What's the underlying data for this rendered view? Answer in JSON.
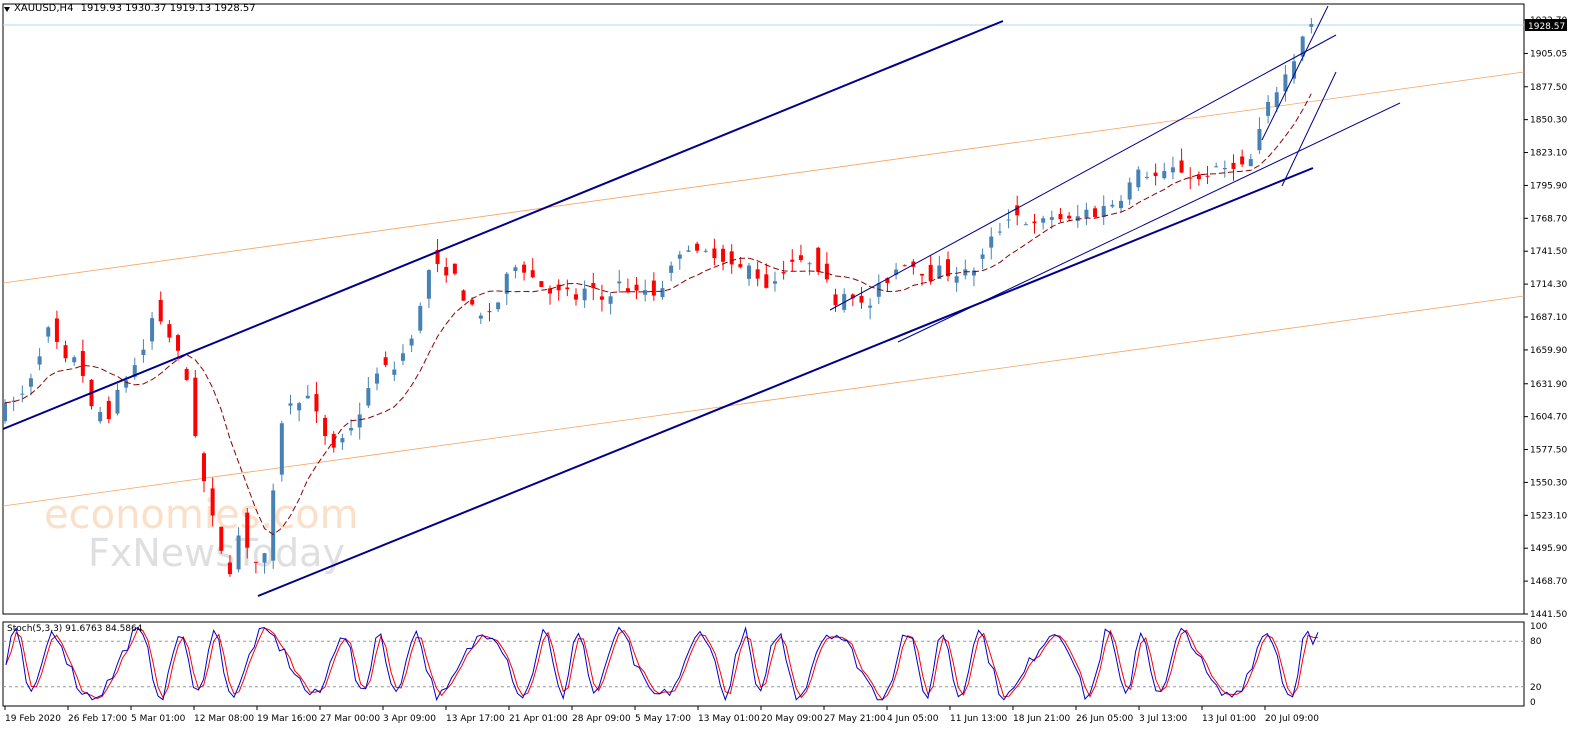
{
  "header": {
    "symbol": "XAUUSD,H4",
    "ohlc": "1919.93 1930.37 1919.13 1928.57"
  },
  "current_price_label": "1928.57",
  "watermark": {
    "line1": "economies.com",
    "line2": "FxNewsToday"
  },
  "colors": {
    "background": "#ffffff",
    "bull_candle": "#4682b4",
    "bear_candle": "#ff0000",
    "channel": "#00008b",
    "fib_line": "#f4a460",
    "moving_average": "#8b0000",
    "price_line": "#b0d8f0",
    "stoch_main": "#0000cd",
    "stoch_signal": "#ff0000",
    "watermark": "#f4a460"
  },
  "chart_data": [
    {
      "type": "candlestick",
      "title": "XAUUSD,H4",
      "ylim": [
        1441.5,
        1932.7
      ],
      "y_ticks": [
        "1932.70",
        "1905.05",
        "1877.50",
        "1850.30",
        "1823.10",
        "1795.90",
        "1768.70",
        "1741.50",
        "1714.30",
        "1687.10",
        "1659.90",
        "1631.90",
        "1604.70",
        "1577.50",
        "1550.30",
        "1523.10",
        "1495.90",
        "1468.70",
        "1441.50"
      ],
      "x_ticks": [
        "19 Feb 2020",
        "26 Feb 17:00",
        "5 Mar 01:00",
        "12 Mar 08:00",
        "19 Mar 16:00",
        "27 Mar 00:00",
        "3 Apr 09:00",
        "13 Apr 17:00",
        "21 Apr 01:00",
        "28 Apr 09:00",
        "5 May 17:00",
        "13 May 01:00",
        "20 May 09:00",
        "27 May 21:00",
        "4 Jun 05:00",
        "11 Jun 13:00",
        "18 Jun 21:00",
        "26 Jun 05:00",
        "3 Jul 13:00",
        "13 Jul 01:00",
        "20 Jul 09:00"
      ],
      "last_price": 1928.57,
      "price_path": [
        [
          0,
          1608
        ],
        [
          3,
          1625
        ],
        [
          5,
          1665
        ],
        [
          6,
          1680
        ],
        [
          7,
          1658
        ],
        [
          8,
          1645
        ],
        [
          9,
          1660
        ],
        [
          10,
          1632
        ],
        [
          11,
          1600
        ],
        [
          12,
          1612
        ],
        [
          13,
          1605
        ],
        [
          14,
          1630
        ],
        [
          15,
          1640
        ],
        [
          16,
          1650
        ],
        [
          17,
          1665
        ],
        [
          18,
          1695
        ],
        [
          19,
          1680
        ],
        [
          20,
          1668
        ],
        [
          21,
          1650
        ],
        [
          22,
          1630
        ],
        [
          23,
          1575
        ],
        [
          24,
          1540
        ],
        [
          25,
          1510
        ],
        [
          26,
          1490
        ],
        [
          27,
          1475
        ],
        [
          28,
          1520
        ],
        [
          29,
          1490
        ],
        [
          30,
          1482
        ],
        [
          31,
          1490
        ],
        [
          32,
          1560
        ],
        [
          33,
          1620
        ],
        [
          34,
          1610
        ],
        [
          35,
          1625
        ],
        [
          36,
          1618
        ],
        [
          37,
          1600
        ],
        [
          38,
          1585
        ],
        [
          39,
          1578
        ],
        [
          40,
          1590
        ],
        [
          41,
          1600
        ],
        [
          42,
          1612
        ],
        [
          43,
          1630
        ],
        [
          44,
          1650
        ],
        [
          45,
          1640
        ],
        [
          46,
          1650
        ],
        [
          47,
          1660
        ],
        [
          48,
          1680
        ],
        [
          49,
          1700
        ],
        [
          50,
          1738
        ],
        [
          51,
          1722
        ],
        [
          52,
          1728
        ],
        [
          53,
          1715
        ],
        [
          54,
          1700
        ],
        [
          55,
          1690
        ],
        [
          56,
          1685
        ],
        [
          57,
          1695
        ],
        [
          58,
          1702
        ],
        [
          59,
          1725
        ],
        [
          60,
          1735
        ],
        [
          61,
          1725
        ],
        [
          62,
          1718
        ],
        [
          63,
          1712
        ],
        [
          64,
          1710
        ],
        [
          65,
          1705
        ],
        [
          66,
          1708
        ],
        [
          67,
          1700
        ],
        [
          68,
          1712
        ],
        [
          69,
          1705
        ],
        [
          70,
          1700
        ],
        [
          71,
          1712
        ],
        [
          72,
          1715
        ],
        [
          73,
          1708
        ],
        [
          74,
          1705
        ],
        [
          75,
          1712
        ],
        [
          76,
          1705
        ],
        [
          77,
          1718
        ],
        [
          78,
          1730
        ],
        [
          79,
          1748
        ],
        [
          80,
          1745
        ],
        [
          81,
          1735
        ],
        [
          82,
          1742
        ],
        [
          83,
          1740
        ],
        [
          84,
          1735
        ],
        [
          85,
          1728
        ],
        [
          86,
          1725
        ],
        [
          87,
          1730
        ],
        [
          88,
          1718
        ],
        [
          89,
          1712
        ],
        [
          90,
          1720
        ],
        [
          91,
          1730
        ],
        [
          92,
          1735
        ],
        [
          93,
          1728
        ],
        [
          94,
          1738
        ],
        [
          95,
          1725
        ],
        [
          96,
          1710
        ],
        [
          97,
          1698
        ],
        [
          98,
          1712
        ],
        [
          99,
          1705
        ],
        [
          100,
          1692
        ],
        [
          101,
          1700
        ],
        [
          102,
          1715
        ],
        [
          103,
          1720
        ],
        [
          104,
          1730
        ],
        [
          105,
          1735
        ],
        [
          106,
          1728
        ],
        [
          107,
          1725
        ],
        [
          108,
          1720
        ],
        [
          109,
          1728
        ],
        [
          110,
          1722
        ],
        [
          111,
          1725
        ],
        [
          112,
          1722
        ],
        [
          113,
          1730
        ],
        [
          114,
          1740
        ],
        [
          115,
          1755
        ],
        [
          116,
          1762
        ],
        [
          117,
          1775
        ],
        [
          118,
          1770
        ],
        [
          119,
          1765
        ],
        [
          120,
          1760
        ],
        [
          121,
          1768
        ],
        [
          122,
          1772
        ],
        [
          123,
          1768
        ],
        [
          124,
          1765
        ],
        [
          125,
          1772
        ],
        [
          126,
          1776
        ],
        [
          127,
          1772
        ],
        [
          128,
          1780
        ],
        [
          129,
          1782
        ],
        [
          130,
          1790
        ],
        [
          131,
          1800
        ],
        [
          132,
          1808
        ],
        [
          133,
          1805
        ],
        [
          134,
          1802
        ],
        [
          135,
          1805
        ],
        [
          136,
          1810
        ],
        [
          137,
          1808
        ],
        [
          138,
          1802
        ],
        [
          139,
          1800
        ],
        [
          140,
          1810
        ],
        [
          141,
          1806
        ],
        [
          142,
          1812
        ],
        [
          143,
          1815
        ],
        [
          144,
          1810
        ],
        [
          145,
          1820
        ],
        [
          146,
          1850
        ],
        [
          147,
          1865
        ],
        [
          148,
          1880
        ],
        [
          149,
          1890
        ],
        [
          150,
          1905
        ],
        [
          151,
          1928
        ]
      ],
      "series": [
        {
          "name": "",
          "kind": "moving_average"
        }
      ]
    },
    {
      "type": "line",
      "title": "Stoch(5,3,3) 91.6763 84.5864",
      "main": 91.6763,
      "signal": 84.5864,
      "ylim": [
        0,
        100
      ],
      "y_ticks": [
        "100",
        "80",
        "20",
        "0"
      ],
      "levels": [
        80,
        20
      ]
    }
  ]
}
